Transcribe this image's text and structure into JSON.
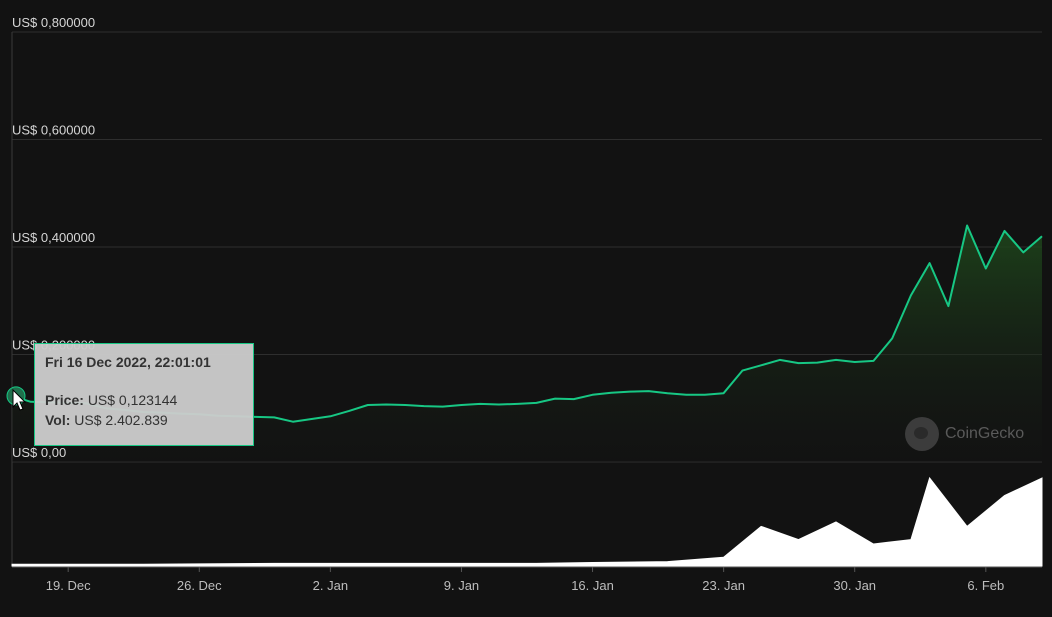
{
  "chart_data": {
    "type": "line",
    "title": "",
    "xlabel": "",
    "ylabel": "",
    "price_axis": {
      "ylim": [
        0,
        0.8
      ],
      "ticks": [
        {
          "value": 0.0,
          "label": "US$ 0,00"
        },
        {
          "value": 0.2,
          "label": "US$ 0,200000"
        },
        {
          "value": 0.4,
          "label": "US$ 0,400000"
        },
        {
          "value": 0.6,
          "label": "US$ 0,600000"
        },
        {
          "value": 0.8,
          "label": "US$ 0,800000"
        }
      ]
    },
    "x_axis": {
      "xlim": [
        "2022-12-16",
        "2023-02-09"
      ],
      "ticks": [
        {
          "date": "2022-12-19",
          "label": "19. Dec"
        },
        {
          "date": "2022-12-26",
          "label": "26. Dec"
        },
        {
          "date": "2023-01-02",
          "label": "2. Jan"
        },
        {
          "date": "2023-01-09",
          "label": "9. Jan"
        },
        {
          "date": "2023-01-16",
          "label": "16. Jan"
        },
        {
          "date": "2023-01-23",
          "label": "23. Jan"
        },
        {
          "date": "2023-01-30",
          "label": "30. Jan"
        },
        {
          "date": "2023-02-06",
          "label": "6. Feb"
        }
      ]
    },
    "grid": true,
    "line_color": "#17c784",
    "series": [
      {
        "values_kind": "price_usd",
        "x": [
          "2022-12-16",
          "2022-12-17",
          "2022-12-18",
          "2022-12-19",
          "2022-12-20",
          "2022-12-21",
          "2022-12-22",
          "2022-12-23",
          "2022-12-24",
          "2022-12-25",
          "2022-12-26",
          "2022-12-27",
          "2022-12-28",
          "2022-12-29",
          "2022-12-30",
          "2022-12-31",
          "2023-01-01",
          "2023-01-02",
          "2023-01-03",
          "2023-01-04",
          "2023-01-05",
          "2023-01-06",
          "2023-01-07",
          "2023-01-08",
          "2023-01-09",
          "2023-01-10",
          "2023-01-11",
          "2023-01-12",
          "2023-01-13",
          "2023-01-14",
          "2023-01-15",
          "2023-01-16",
          "2023-01-17",
          "2023-01-18",
          "2023-01-19",
          "2023-01-20",
          "2023-01-21",
          "2023-01-22",
          "2023-01-23",
          "2023-01-24",
          "2023-01-25",
          "2023-01-26",
          "2023-01-27",
          "2023-01-28",
          "2023-01-29",
          "2023-01-30",
          "2023-01-31",
          "2023-02-01",
          "2023-02-02",
          "2023-02-03",
          "2023-02-04",
          "2023-02-05",
          "2023-02-06",
          "2023-02-07",
          "2023-02-08",
          "2023-02-09"
        ],
        "values": [
          0.123,
          0.112,
          0.111,
          0.11,
          0.109,
          0.1,
          0.097,
          0.093,
          0.092,
          0.09,
          0.089,
          0.086,
          0.085,
          0.084,
          0.083,
          0.075,
          0.08,
          0.085,
          0.095,
          0.106,
          0.107,
          0.106,
          0.104,
          0.103,
          0.106,
          0.108,
          0.107,
          0.108,
          0.11,
          0.118,
          0.117,
          0.125,
          0.129,
          0.131,
          0.132,
          0.128,
          0.125,
          0.125,
          0.128,
          0.17,
          0.18,
          0.19,
          0.184,
          0.185,
          0.19,
          0.186,
          0.188,
          0.23,
          0.31,
          0.37,
          0.29,
          0.44,
          0.36,
          0.43,
          0.39,
          0.42
        ]
      },
      {
        "values_kind": "volume_relative",
        "x": [
          "2022-12-16",
          "2022-12-23",
          "2022-12-30",
          "2023-01-06",
          "2023-01-13",
          "2023-01-16",
          "2023-01-20",
          "2023-01-23",
          "2023-01-25",
          "2023-01-27",
          "2023-01-29",
          "2023-01-31",
          "2023-02-02",
          "2023-02-03",
          "2023-02-05",
          "2023-02-07",
          "2023-02-09"
        ],
        "values": [
          0.02,
          0.02,
          0.03,
          0.03,
          0.03,
          0.04,
          0.05,
          0.1,
          0.45,
          0.3,
          0.5,
          0.25,
          0.3,
          1.0,
          0.45,
          0.8,
          1.0
        ]
      }
    ],
    "tooltip": {
      "date": "Fri 16 Dec 2022, 22:01:01",
      "price_key": "Price:",
      "price_value": "US$ 0,123144",
      "vol_key": "Vol:",
      "vol_value": "US$ 2.402.839"
    },
    "watermark": "CoinGecko"
  }
}
